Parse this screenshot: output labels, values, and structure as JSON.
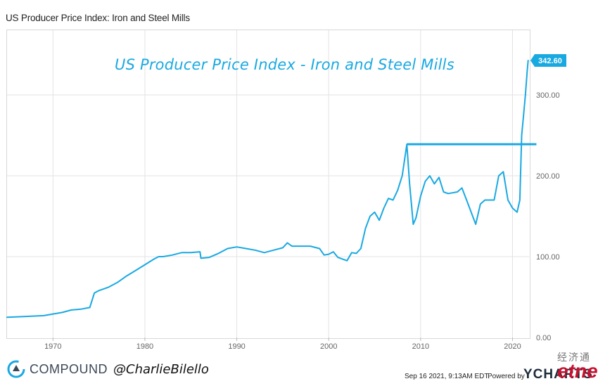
{
  "title": "US Producer Price Index: Iron and Steel Mills",
  "annotation": "US Producer Price Index - Iron and Steel Mills",
  "footer": {
    "brand": "COMPOUND",
    "handle": "@CharlieBilello",
    "timestamp": "Sep 16 2021, 9:13AM EDT.",
    "powered_by": "Powered by",
    "provider": "YCHARTS",
    "watermark_cn": "经济通",
    "watermark_en": "etnet"
  },
  "colors": {
    "line": "#19a9e1",
    "grid": "#e3e3e3",
    "axis_text": "#666666",
    "badge": "#19a9e1",
    "annotation": "#19a9e1"
  },
  "chart_data": {
    "type": "line",
    "title": "US Producer Price Index: Iron and Steel Mills",
    "xlabel": "",
    "ylabel": "",
    "xlim": [
      1965.0,
      2021.8
    ],
    "ylim": [
      0,
      380
    ],
    "x_ticks": [
      1970,
      1980,
      1990,
      2000,
      2010,
      2020
    ],
    "x_tick_labels": [
      "1970",
      "1980",
      "1990",
      "2000",
      "2010",
      "2020"
    ],
    "y_ticks": [
      0,
      100,
      200,
      300
    ],
    "y_tick_labels": [
      "0.00",
      "100.00",
      "200.00",
      "300.00"
    ],
    "grid": true,
    "last_value_label": "342.60",
    "reference_line": {
      "x_start": 2008.5,
      "x_end": 2022.6,
      "y": 239
    },
    "series": [
      {
        "x": [
          1965.0,
          1967.0,
          1969.0,
          1970.0,
          1971.0,
          1972.0,
          1973.0,
          1974.0,
          1974.5,
          1975.0,
          1976.0,
          1977.0,
          1978.0,
          1979.0,
          1980.0,
          1981.0,
          1981.5,
          1982.0,
          1983.0,
          1984.0,
          1985.0,
          1986.0,
          1986.1,
          1987.0,
          1988.0,
          1989.0,
          1990.0,
          1991.0,
          1992.0,
          1993.0,
          1994.0,
          1995.0,
          1995.5,
          1996.0,
          1997.0,
          1998.0,
          1999.0,
          1999.5,
          2000.0,
          2000.5,
          2001.0,
          2002.0,
          2002.5,
          2003.0,
          2003.5,
          2004.0,
          2004.5,
          2005.0,
          2005.5,
          2006.0,
          2006.5,
          2007.0,
          2007.5,
          2008.0,
          2008.5,
          2008.8,
          2009.2,
          2009.5,
          2010.0,
          2010.5,
          2011.0,
          2011.5,
          2012.0,
          2012.5,
          2013.0,
          2014.0,
          2014.5,
          2015.0,
          2016.0,
          2016.5,
          2017.0,
          2018.0,
          2018.5,
          2019.0,
          2019.5,
          2020.0,
          2020.5,
          2020.8,
          2021.0,
          2021.2,
          2021.4,
          2021.6,
          2021.7
        ],
        "y": [
          25,
          26,
          27,
          29,
          31,
          34,
          35,
          37,
          55,
          58,
          62,
          68,
          76,
          83,
          90,
          97,
          100,
          100,
          102,
          105,
          105,
          106,
          98,
          99,
          104,
          110,
          112,
          110,
          108,
          105,
          108,
          111,
          117,
          113,
          113,
          113,
          110,
          102,
          103,
          106,
          99,
          95,
          105,
          104,
          110,
          135,
          150,
          155,
          145,
          160,
          172,
          170,
          182,
          200,
          239,
          190,
          140,
          148,
          175,
          193,
          200,
          190,
          198,
          180,
          178,
          180,
          185,
          170,
          140,
          165,
          170,
          170,
          200,
          205,
          170,
          160,
          155,
          170,
          250,
          275,
          300,
          330,
          342.6
        ]
      }
    ]
  }
}
